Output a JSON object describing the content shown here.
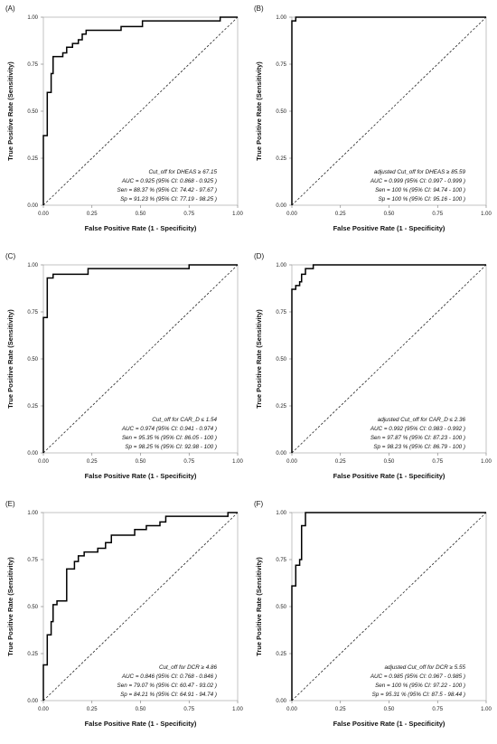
{
  "chart_data": [
    {
      "panel": "(A)",
      "type": "line",
      "xlabel": "False Positive Rate (1 - Specificity)",
      "ylabel": "True Positive Rate (Sensitivity)",
      "xlim": [
        0,
        1
      ],
      "ylim": [
        0,
        1
      ],
      "xticks": [
        "0.00",
        "0.25",
        "0.50",
        "0.75",
        "1.00"
      ],
      "yticks": [
        "0.00",
        "0.25",
        "0.50",
        "0.75",
        "1.00"
      ],
      "reference_line": "diagonal, dashed",
      "annotation": [
        "Cut_off for DHEAS ≥  67.15",
        "AUC =  0.925  (95% CI:  0.868  -  0.925 )",
        "Sen =  88.37 %  (95% CI:  74.42  -  97.67 )",
        "Sp =  91.23 %  (95% CI:  77.19  -  98.25 )"
      ],
      "roc": [
        [
          0,
          0
        ],
        [
          0,
          0.37
        ],
        [
          0.02,
          0.37
        ],
        [
          0.02,
          0.6
        ],
        [
          0.04,
          0.6
        ],
        [
          0.04,
          0.7
        ],
        [
          0.05,
          0.7
        ],
        [
          0.05,
          0.79
        ],
        [
          0.1,
          0.79
        ],
        [
          0.1,
          0.81
        ],
        [
          0.12,
          0.81
        ],
        [
          0.12,
          0.84
        ],
        [
          0.15,
          0.84
        ],
        [
          0.15,
          0.86
        ],
        [
          0.18,
          0.86
        ],
        [
          0.18,
          0.88
        ],
        [
          0.2,
          0.88
        ],
        [
          0.2,
          0.91
        ],
        [
          0.22,
          0.91
        ],
        [
          0.22,
          0.93
        ],
        [
          0.4,
          0.93
        ],
        [
          0.4,
          0.95
        ],
        [
          0.51,
          0.95
        ],
        [
          0.51,
          0.98
        ],
        [
          0.91,
          0.98
        ],
        [
          0.91,
          1.0
        ],
        [
          1.0,
          1.0
        ]
      ]
    },
    {
      "panel": "(B)",
      "type": "line",
      "xlabel": "False Positive Rate (1 - Specificity)",
      "ylabel": "True Positive Rate (Sensitivity)",
      "xlim": [
        0,
        1
      ],
      "ylim": [
        0,
        1
      ],
      "xticks": [
        "0.00",
        "0.25",
        "0.50",
        "0.75",
        "1.00"
      ],
      "yticks": [
        "0.00",
        "0.25",
        "0.50",
        "0.75",
        "1.00"
      ],
      "reference_line": "diagonal, dashed",
      "annotation": [
        "adjusted Cut_off for DHEAS ≥  85.59",
        "AUC =  0.999  (95% CI:  0.997  -  0.999 )",
        "Sen =  100 %  (95% CI:  94.74  -  100 )",
        "Sp =  100 %  (95% CI:  95.16  -  100 )"
      ],
      "roc": [
        [
          0,
          0
        ],
        [
          0,
          0.98
        ],
        [
          0.02,
          0.98
        ],
        [
          0.02,
          1.0
        ],
        [
          1.0,
          1.0
        ]
      ]
    },
    {
      "panel": "(C)",
      "type": "line",
      "xlabel": "False Positive Rate (1 - Specificity)",
      "ylabel": "True Positive Rate (Sensitivity)",
      "xlim": [
        0,
        1
      ],
      "ylim": [
        0,
        1
      ],
      "xticks": [
        "0.00",
        "0.25",
        "0.50",
        "0.75",
        "1.00"
      ],
      "yticks": [
        "0.00",
        "0.25",
        "0.50",
        "0.75",
        "1.00"
      ],
      "reference_line": "diagonal, dashed",
      "annotation": [
        "Cut_off for CAR_D ≤  1.54",
        "AUC =  0.974  (95% CI:  0.941  -  0.974 )",
        "Sen =  95.35 %  (95% CI:  86.05  -  100 )",
        "Sp =  98.25 %  (95% CI:  92.98  -  100 )"
      ],
      "roc": [
        [
          0,
          0
        ],
        [
          0,
          0.72
        ],
        [
          0.02,
          0.72
        ],
        [
          0.02,
          0.93
        ],
        [
          0.05,
          0.93
        ],
        [
          0.05,
          0.95
        ],
        [
          0.23,
          0.95
        ],
        [
          0.23,
          0.98
        ],
        [
          0.75,
          0.98
        ],
        [
          0.75,
          1.0
        ],
        [
          1.0,
          1.0
        ]
      ]
    },
    {
      "panel": "(D)",
      "type": "line",
      "xlabel": "False Positive Rate (1 - Specificity)",
      "ylabel": "True Positive Rate (Sensitivity)",
      "xlim": [
        0,
        1
      ],
      "ylim": [
        0,
        1
      ],
      "xticks": [
        "0.00",
        "0.25",
        "0.50",
        "0.75",
        "1.00"
      ],
      "yticks": [
        "0.00",
        "0.25",
        "0.50",
        "0.75",
        "1.00"
      ],
      "reference_line": "diagonal, dashed",
      "annotation": [
        "adjusted Cut_off for CAR_D ≤  2.36",
        "AUC =  0.992  (95% CI:  0.983  -  0.992 )",
        "Sen =  97.87 %  (95% CI:  87.23  -  100 )",
        "Sp =  98.23 %  (95% CI:  86.79  -  100 )"
      ],
      "roc": [
        [
          0,
          0
        ],
        [
          0,
          0.87
        ],
        [
          0.02,
          0.87
        ],
        [
          0.02,
          0.89
        ],
        [
          0.04,
          0.89
        ],
        [
          0.04,
          0.91
        ],
        [
          0.05,
          0.91
        ],
        [
          0.05,
          0.95
        ],
        [
          0.07,
          0.95
        ],
        [
          0.07,
          0.98
        ],
        [
          0.11,
          0.98
        ],
        [
          0.11,
          1.0
        ],
        [
          1.0,
          1.0
        ]
      ]
    },
    {
      "panel": "(E)",
      "type": "line",
      "xlabel": "False Positive Rate (1 - Specificity)",
      "ylabel": "True Positive Rate (Sensitivity)",
      "xlim": [
        0,
        1
      ],
      "ylim": [
        0,
        1
      ],
      "xticks": [
        "0.00",
        "0.25",
        "0.50",
        "0.75",
        "1.00"
      ],
      "yticks": [
        "0.00",
        "0.25",
        "0.50",
        "0.75",
        "1.00"
      ],
      "reference_line": "diagonal, dashed",
      "annotation": [
        "Cut_off for DCR ≥  4.86",
        "AUC =  0.846  (95% CI:  0.768  -  0.846 )",
        "Sen =  79.07 %  (95% CI:  60.47  -  93.02 )",
        "Sp =  84.21 %  (95% CI:  64.91  -  94.74 )"
      ],
      "roc": [
        [
          0,
          0
        ],
        [
          0,
          0.19
        ],
        [
          0.02,
          0.19
        ],
        [
          0.02,
          0.35
        ],
        [
          0.04,
          0.35
        ],
        [
          0.04,
          0.42
        ],
        [
          0.05,
          0.42
        ],
        [
          0.05,
          0.51
        ],
        [
          0.07,
          0.51
        ],
        [
          0.07,
          0.53
        ],
        [
          0.12,
          0.53
        ],
        [
          0.12,
          0.7
        ],
        [
          0.16,
          0.7
        ],
        [
          0.16,
          0.74
        ],
        [
          0.18,
          0.74
        ],
        [
          0.18,
          0.77
        ],
        [
          0.21,
          0.77
        ],
        [
          0.21,
          0.79
        ],
        [
          0.28,
          0.79
        ],
        [
          0.28,
          0.81
        ],
        [
          0.32,
          0.81
        ],
        [
          0.32,
          0.84
        ],
        [
          0.35,
          0.84
        ],
        [
          0.35,
          0.88
        ],
        [
          0.47,
          0.88
        ],
        [
          0.47,
          0.91
        ],
        [
          0.53,
          0.91
        ],
        [
          0.53,
          0.93
        ],
        [
          0.6,
          0.93
        ],
        [
          0.6,
          0.95
        ],
        [
          0.63,
          0.95
        ],
        [
          0.63,
          0.98
        ],
        [
          0.95,
          0.98
        ],
        [
          0.95,
          1.0
        ],
        [
          1.0,
          1.0
        ]
      ]
    },
    {
      "panel": "(F)",
      "type": "line",
      "xlabel": "False Positive Rate (1 - Specificity)",
      "ylabel": "True Positive Rate (Sensitivity)",
      "xlim": [
        0,
        1
      ],
      "ylim": [
        0,
        1
      ],
      "xticks": [
        "0.00",
        "0.25",
        "0.50",
        "0.75",
        "1.00"
      ],
      "yticks": [
        "0.00",
        "0.25",
        "0.50",
        "0.75",
        "1.00"
      ],
      "reference_line": "diagonal, dashed",
      "annotation": [
        "adjusted Cut_off for DCR ≥  5.55",
        "AUC =  0.985  (95% CI:  0.967  -  0.985 )",
        "Sen =  100 %  (95% CI:  97.22  -  100 )",
        "Sp =  95.31 %  (95% CI:  87.5  -  98.44 )"
      ],
      "roc": [
        [
          0,
          0
        ],
        [
          0,
          0.61
        ],
        [
          0.02,
          0.61
        ],
        [
          0.02,
          0.72
        ],
        [
          0.04,
          0.72
        ],
        [
          0.04,
          0.75
        ],
        [
          0.05,
          0.75
        ],
        [
          0.05,
          0.93
        ],
        [
          0.07,
          0.93
        ],
        [
          0.07,
          1.0
        ],
        [
          1.0,
          1.0
        ]
      ]
    }
  ]
}
